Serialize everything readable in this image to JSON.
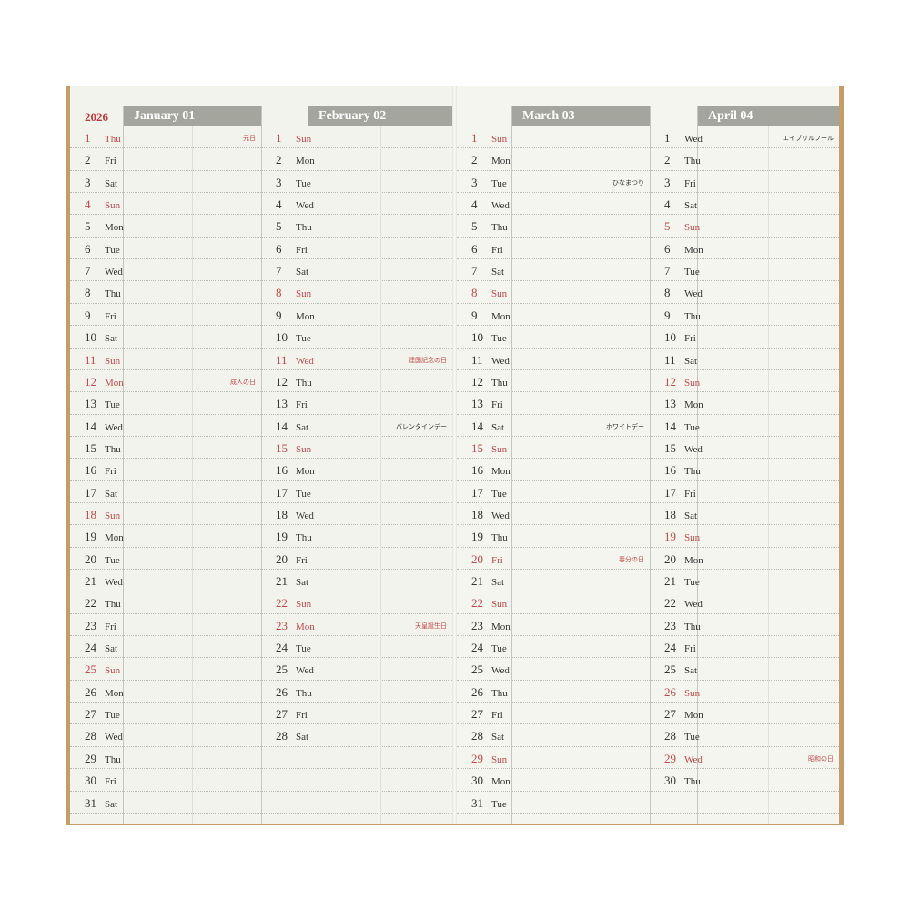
{
  "year": "2026",
  "months": [
    {
      "title": "January 01",
      "first_weekday": "Thu",
      "days": 31,
      "holidays": [
        {
          "day": 1,
          "label": "元日",
          "red": true
        },
        {
          "day": 12,
          "label": "成人の日",
          "red": true
        }
      ]
    },
    {
      "title": "February 02",
      "first_weekday": "Sun",
      "days": 28,
      "holidays": [
        {
          "day": 11,
          "label": "建国記念の日",
          "red": true
        },
        {
          "day": 14,
          "label": "バレンタインデー",
          "red": false
        },
        {
          "day": 23,
          "label": "天皇誕生日",
          "red": true
        }
      ]
    },
    {
      "title": "March 03",
      "first_weekday": "Sun",
      "days": 31,
      "holidays": [
        {
          "day": 3,
          "label": "ひなまつり",
          "red": false
        },
        {
          "day": 14,
          "label": "ホワイトデー",
          "red": false
        },
        {
          "day": 20,
          "label": "春分の日",
          "red": true
        }
      ]
    },
    {
      "title": "April 04",
      "first_weekday": "Wed",
      "days": 30,
      "holidays": [
        {
          "day": 1,
          "label": "エイプリルフール",
          "red": false
        },
        {
          "day": 29,
          "label": "昭和の日",
          "red": true
        }
      ]
    }
  ],
  "weekdays": [
    "Sun",
    "Mon",
    "Tue",
    "Wed",
    "Thu",
    "Fri",
    "Sat"
  ],
  "colors": {
    "header": "#a4a69d",
    "sunday_holiday": "#c44a4a",
    "paper": "#f2f3ec",
    "cover": "#c69c68"
  }
}
